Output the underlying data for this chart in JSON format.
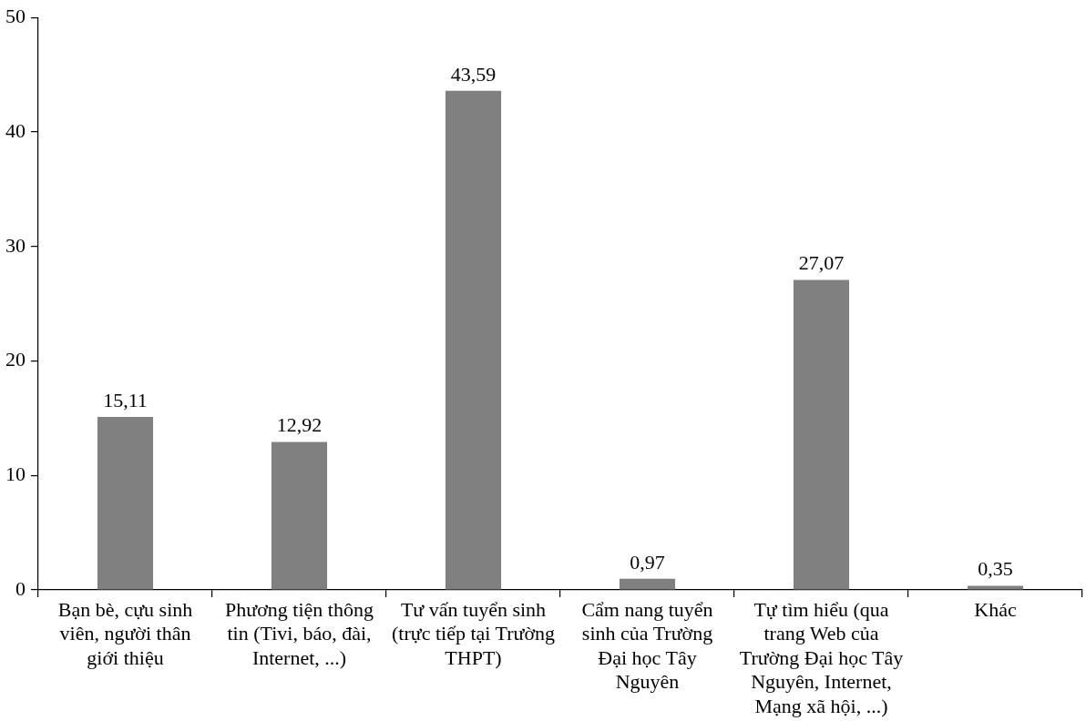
{
  "chart_data": {
    "type": "bar",
    "categories": [
      "Bạn bè, cựu sinh viên, người thân giới thiệu",
      "Phương tiện thông tin (Tivi, báo, đài, Internet, ...)",
      "Tư vấn tuyển sinh (trực tiếp tại Trường THPT)",
      "Cẩm nang tuyển sinh của Trường Đại học Tây Nguyên",
      "Tự tìm hiểu (qua trang Web của Trường Đại học Tây Nguyên, Internet, Mạng xã hội, ...)",
      "Khác"
    ],
    "values": [
      15.11,
      12.92,
      43.59,
      0.97,
      27.07,
      0.35
    ],
    "value_labels": [
      "15,11",
      "12,92",
      "43,59",
      "0,97",
      "27,07",
      "0,35"
    ],
    "color": "#808080",
    "ylim": [
      0,
      50
    ],
    "yticks": [
      0,
      10,
      20,
      30,
      40,
      50
    ],
    "grid": false,
    "legend": false
  }
}
